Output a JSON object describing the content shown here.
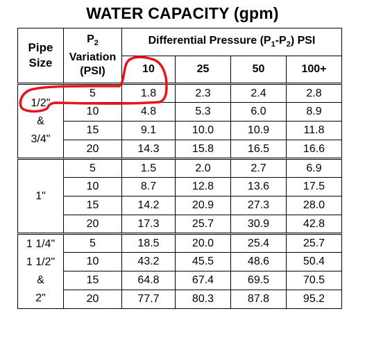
{
  "title": "WATER CAPACITY (gpm)",
  "headers": {
    "pipe_size_line1": "Pipe",
    "pipe_size_line2": "Size",
    "p2_label": "P",
    "p2_sub": "2",
    "variation_line1": "Variation",
    "variation_line2": "(PSI)",
    "diff_prefix": "Differential Pressure (P",
    "diff_sub1": "1",
    "diff_mid": "-P",
    "diff_sub2": "2",
    "diff_suffix": ") PSI",
    "columns": [
      "10",
      "25",
      "50",
      "100+"
    ]
  },
  "groups": [
    {
      "size_lines": [
        "1/2\"",
        "&",
        "3/4\""
      ],
      "rows": [
        {
          "variation": "5",
          "values": [
            "1.8",
            "2.3",
            "2.4",
            "2.8"
          ]
        },
        {
          "variation": "10",
          "values": [
            "4.8",
            "5.3",
            "6.0",
            "8.9"
          ]
        },
        {
          "variation": "15",
          "values": [
            "9.1",
            "10.0",
            "10.9",
            "11.8"
          ]
        },
        {
          "variation": "20",
          "values": [
            "14.3",
            "15.8",
            "16.5",
            "16.6"
          ]
        }
      ]
    },
    {
      "size_lines": [
        "1\""
      ],
      "rows": [
        {
          "variation": "5",
          "values": [
            "1.5",
            "2.0",
            "2.7",
            "6.9"
          ]
        },
        {
          "variation": "10",
          "values": [
            "8.7",
            "12.8",
            "13.6",
            "17.5"
          ]
        },
        {
          "variation": "15",
          "values": [
            "14.2",
            "20.9",
            "27.3",
            "28.0"
          ]
        },
        {
          "variation": "20",
          "values": [
            "17.3",
            "25.7",
            "30.9",
            "42.8"
          ]
        }
      ]
    },
    {
      "size_lines": [
        "1 1/4\"",
        "1 1/2\"",
        "&",
        "2\""
      ],
      "rows": [
        {
          "variation": "5",
          "values": [
            "18.5",
            "20.0",
            "25.4",
            "25.7"
          ]
        },
        {
          "variation": "10",
          "values": [
            "43.2",
            "45.5",
            "48.6",
            "50.4"
          ]
        },
        {
          "variation": "15",
          "values": [
            "64.8",
            "67.4",
            "69.5",
            "70.5"
          ]
        },
        {
          "variation": "20",
          "values": [
            "77.7",
            "80.3",
            "87.8",
            "95.2"
          ]
        }
      ]
    }
  ],
  "annotation": {
    "color": "#e8141b"
  }
}
